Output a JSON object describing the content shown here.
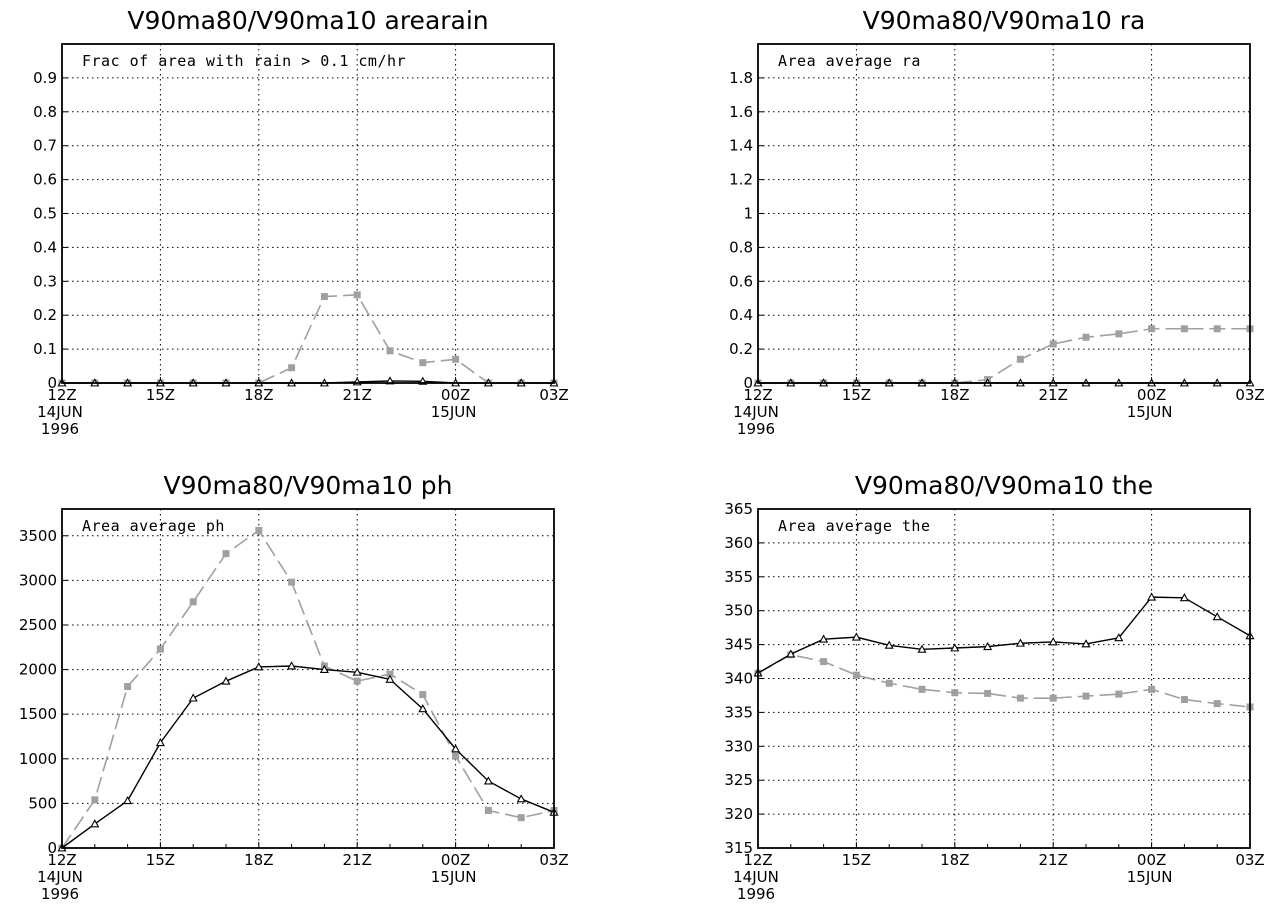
{
  "chart_data": [
    {
      "type": "line",
      "title": "V90ma80/V90ma10 arearain",
      "annotation": "Frac of area with rain > 0.1 cm/hr",
      "ylim": [
        0,
        1
      ],
      "yticks": [
        "0",
        "0.1",
        "0.2",
        "0.3",
        "0.4",
        "0.5",
        "0.6",
        "0.7",
        "0.8",
        "0.9"
      ],
      "xlim": [
        0,
        15
      ],
      "xticks": [
        {
          "x": 0,
          "lines": [
            "12Z",
            "14JUN",
            "1996"
          ]
        },
        {
          "x": 3,
          "lines": [
            "15Z"
          ]
        },
        {
          "x": 6,
          "lines": [
            "18Z"
          ]
        },
        {
          "x": 9,
          "lines": [
            "21Z"
          ]
        },
        {
          "x": 12,
          "lines": [
            "00Z",
            "15JUN"
          ]
        },
        {
          "x": 15,
          "lines": [
            "03Z"
          ]
        }
      ],
      "grid": true,
      "x": [
        0,
        1,
        2,
        3,
        4,
        5,
        6,
        7,
        8,
        9,
        10,
        11,
        12,
        13,
        14,
        15
      ],
      "series": [
        {
          "marker": "square",
          "color": "#a0a0a0",
          "dash": true,
          "values": [
            0,
            0,
            0,
            0,
            0,
            0,
            0,
            0.045,
            0.255,
            0.26,
            0.095,
            0.06,
            0.07,
            0,
            0,
            0
          ]
        },
        {
          "marker": "triangle",
          "color": "#000000",
          "dash": false,
          "values": [
            0,
            0,
            0,
            0,
            0,
            0,
            0,
            0,
            0,
            0.003,
            0.006,
            0.005,
            0,
            0,
            0,
            0
          ]
        }
      ]
    },
    {
      "type": "line",
      "title": "V90ma80/V90ma10 ra",
      "annotation": "Area average ra",
      "ylim": [
        0,
        2
      ],
      "yticks": [
        "0",
        "0.2",
        "0.4",
        "0.6",
        "0.8",
        "1",
        "1.2",
        "1.4",
        "1.6",
        "1.8"
      ],
      "xlim": [
        0,
        15
      ],
      "xticks": [
        {
          "x": 0,
          "lines": [
            "12Z",
            "14JUN",
            "1996"
          ]
        },
        {
          "x": 3,
          "lines": [
            "15Z"
          ]
        },
        {
          "x": 6,
          "lines": [
            "18Z"
          ]
        },
        {
          "x": 9,
          "lines": [
            "21Z"
          ]
        },
        {
          "x": 12,
          "lines": [
            "00Z",
            "15JUN"
          ]
        },
        {
          "x": 15,
          "lines": [
            "03Z"
          ]
        }
      ],
      "grid": true,
      "x": [
        0,
        1,
        2,
        3,
        4,
        5,
        6,
        7,
        8,
        9,
        10,
        11,
        12,
        13,
        14,
        15
      ],
      "series": [
        {
          "marker": "square",
          "color": "#a0a0a0",
          "dash": true,
          "values": [
            0,
            0,
            0,
            0,
            0,
            0,
            0,
            0.02,
            0.14,
            0.23,
            0.27,
            0.29,
            0.32,
            0.32,
            0.32,
            0.32
          ]
        },
        {
          "marker": "triangle",
          "color": "#000000",
          "dash": false,
          "values": [
            0,
            0,
            0,
            0,
            0,
            0,
            0,
            0,
            0,
            0,
            0,
            0,
            0,
            0,
            0,
            0
          ]
        }
      ]
    },
    {
      "type": "line",
      "title": "V90ma80/V90ma10 ph",
      "annotation": "Area average ph",
      "ylim": [
        0,
        3800
      ],
      "yticks": [
        "0",
        "500",
        "1000",
        "1500",
        "2000",
        "2500",
        "3000",
        "3500"
      ],
      "xlim": [
        0,
        15
      ],
      "xticks": [
        {
          "x": 0,
          "lines": [
            "12Z",
            "14JUN",
            "1996"
          ]
        },
        {
          "x": 3,
          "lines": [
            "15Z"
          ]
        },
        {
          "x": 6,
          "lines": [
            "18Z"
          ]
        },
        {
          "x": 9,
          "lines": [
            "21Z"
          ]
        },
        {
          "x": 12,
          "lines": [
            "00Z",
            "15JUN"
          ]
        },
        {
          "x": 15,
          "lines": [
            "03Z"
          ]
        }
      ],
      "grid": true,
      "x": [
        0,
        1,
        2,
        3,
        4,
        5,
        6,
        7,
        8,
        9,
        10,
        11,
        12,
        13,
        14,
        15
      ],
      "series": [
        {
          "marker": "square",
          "color": "#a0a0a0",
          "dash": true,
          "values": [
            0,
            540,
            1810,
            2230,
            2760,
            3300,
            3560,
            2980,
            2040,
            1870,
            1950,
            1720,
            1030,
            420,
            340,
            420
          ]
        },
        {
          "marker": "triangle",
          "color": "#000000",
          "dash": false,
          "values": [
            0,
            270,
            530,
            1180,
            1680,
            1870,
            2030,
            2040,
            2000,
            1970,
            1890,
            1560,
            1110,
            750,
            550,
            400
          ]
        }
      ]
    },
    {
      "type": "line",
      "title": "V90ma80/V90ma10 the",
      "annotation": "Area average the",
      "ylim": [
        315,
        365
      ],
      "yticks": [
        "315",
        "320",
        "325",
        "330",
        "335",
        "340",
        "345",
        "350",
        "355",
        "360",
        "365"
      ],
      "xlim": [
        0,
        15
      ],
      "xticks": [
        {
          "x": 0,
          "lines": [
            "12Z",
            "14JUN",
            "1996"
          ]
        },
        {
          "x": 3,
          "lines": [
            "15Z"
          ]
        },
        {
          "x": 6,
          "lines": [
            "18Z"
          ]
        },
        {
          "x": 9,
          "lines": [
            "21Z"
          ]
        },
        {
          "x": 12,
          "lines": [
            "00Z",
            "15JUN"
          ]
        },
        {
          "x": 15,
          "lines": [
            "03Z"
          ]
        }
      ],
      "grid": true,
      "x": [
        0,
        1,
        2,
        3,
        4,
        5,
        6,
        7,
        8,
        9,
        10,
        11,
        12,
        13,
        14,
        15
      ],
      "series": [
        {
          "marker": "square",
          "color": "#a0a0a0",
          "dash": true,
          "values": [
            340.8,
            343.5,
            342.5,
            340.5,
            339.3,
            338.4,
            337.9,
            337.8,
            337.1,
            337.1,
            337.4,
            337.7,
            338.4,
            336.9,
            336.3,
            335.8
          ]
        },
        {
          "marker": "triangle",
          "color": "#000000",
          "dash": false,
          "values": [
            340.8,
            343.6,
            345.8,
            346.1,
            344.9,
            344.3,
            344.5,
            344.7,
            345.2,
            345.4,
            345.1,
            346.0,
            352.0,
            351.9,
            349.1,
            346.3
          ]
        }
      ]
    }
  ]
}
